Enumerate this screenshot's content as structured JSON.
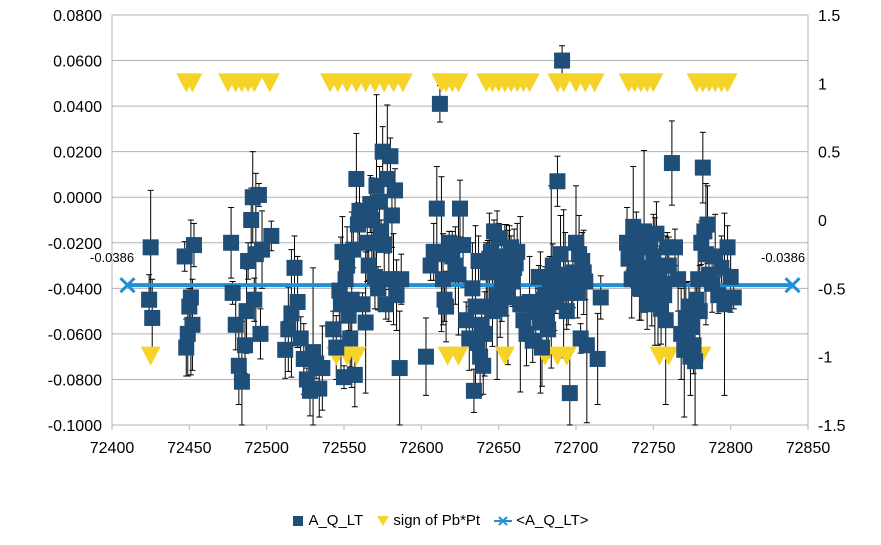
{
  "chart_data": {
    "type": "scatter",
    "xlim": [
      72400,
      72850
    ],
    "ylim_left": [
      -0.1,
      0.08
    ],
    "ylim_right": [
      -1.5,
      1.5
    ],
    "x_ticks": [
      72400,
      72450,
      72500,
      72550,
      72600,
      72650,
      72700,
      72750,
      72800,
      72850
    ],
    "y_left_ticks": [
      "0.0800",
      "0.0600",
      "0.0400",
      "0.0200",
      "0.0000",
      "-0.0200",
      "-0.0400",
      "-0.0600",
      "-0.0800",
      "-0.1000"
    ],
    "y_right_ticks": [
      "1.5",
      "1",
      "0.5",
      "0",
      "-0.5",
      "-1",
      "-1.5"
    ],
    "grid": "horizontal",
    "legend_position": "bottom",
    "colors": {
      "a_q_lt": "#1f4e79",
      "sign": "#f5d328",
      "mean": "#1f8fd6",
      "grid": "#b3b3b3",
      "errorbar": "#000000"
    },
    "annotations": {
      "mean_left": "-0.0386",
      "mean_right": "-0.0386"
    },
    "series": [
      {
        "name": "A_Q_LT",
        "axis": "left",
        "marker": "square",
        "points": [
          [
            72425,
            -0.022
          ],
          [
            72424,
            -0.045
          ],
          [
            72426,
            -0.053
          ],
          [
            72447,
            -0.026
          ],
          [
            72448,
            -0.066
          ],
          [
            72449,
            -0.06
          ],
          [
            72450,
            -0.048
          ],
          [
            72451,
            -0.044
          ],
          [
            72452,
            -0.056
          ],
          [
            72453,
            -0.021
          ],
          [
            72477,
            -0.02
          ],
          [
            72478,
            -0.042
          ],
          [
            72480,
            -0.056
          ],
          [
            72482,
            -0.074
          ],
          [
            72484,
            -0.081
          ],
          [
            72486,
            -0.065
          ],
          [
            72487,
            -0.05
          ],
          [
            72488,
            -0.028
          ],
          [
            72490,
            -0.01
          ],
          [
            72491,
            0.0
          ],
          [
            72492,
            -0.045
          ],
          [
            72493,
            -0.025
          ],
          [
            72495,
            0.001
          ],
          [
            72496,
            -0.06
          ],
          [
            72497,
            -0.023
          ],
          [
            72503,
            -0.017
          ],
          [
            72512,
            -0.067
          ],
          [
            72514,
            -0.058
          ],
          [
            72516,
            -0.051
          ],
          [
            72518,
            -0.031
          ],
          [
            72520,
            -0.046
          ],
          [
            72522,
            -0.062
          ],
          [
            72524,
            -0.071
          ],
          [
            72526,
            -0.08
          ],
          [
            72528,
            -0.085
          ],
          [
            72530,
            -0.068
          ],
          [
            72532,
            -0.073
          ],
          [
            72534,
            -0.084
          ],
          [
            72536,
            -0.075
          ],
          [
            72543,
            -0.058
          ],
          [
            72545,
            -0.066
          ],
          [
            72547,
            -0.041
          ],
          [
            72548,
            -0.047
          ],
          [
            72549,
            -0.024
          ],
          [
            72550,
            -0.079
          ],
          [
            72551,
            -0.036
          ],
          [
            72552,
            -0.03
          ],
          [
            72553,
            -0.052
          ],
          [
            72554,
            -0.062
          ],
          [
            72555,
            -0.045
          ],
          [
            72556,
            -0.023
          ],
          [
            72557,
            -0.078
          ],
          [
            72558,
            0.008
          ],
          [
            72559,
            -0.012
          ],
          [
            72560,
            -0.006
          ],
          [
            72562,
            -0.047
          ],
          [
            72564,
            -0.055
          ],
          [
            72565,
            -0.02
          ],
          [
            72566,
            -0.03
          ],
          [
            72567,
            -0.003
          ],
          [
            72568,
            -0.01
          ],
          [
            72569,
            -0.02
          ],
          [
            72570,
            -0.035
          ],
          [
            72571,
            0.005
          ],
          [
            72572,
            -0.04
          ],
          [
            72573,
            -0.002
          ],
          [
            72574,
            -0.015
          ],
          [
            72575,
            0.02
          ],
          [
            72576,
            -0.021
          ],
          [
            72577,
            -0.047
          ],
          [
            72578,
            0.008
          ],
          [
            72579,
            -0.036
          ],
          [
            72580,
            0.018
          ],
          [
            72581,
            -0.008
          ],
          [
            72582,
            -0.036
          ],
          [
            72583,
            0.003
          ],
          [
            72584,
            -0.043
          ],
          [
            72586,
            -0.075
          ],
          [
            72587,
            -0.036
          ],
          [
            72603,
            -0.07
          ],
          [
            72606,
            -0.03
          ],
          [
            72608,
            -0.024
          ],
          [
            72610,
            -0.005
          ],
          [
            72612,
            0.041
          ],
          [
            72613,
            -0.025
          ],
          [
            72614,
            -0.036
          ],
          [
            72615,
            -0.045
          ],
          [
            72616,
            -0.048
          ],
          [
            72618,
            -0.02
          ],
          [
            72620,
            -0.026
          ],
          [
            72622,
            -0.03
          ],
          [
            72624,
            -0.034
          ],
          [
            72625,
            -0.005
          ],
          [
            72627,
            -0.021
          ],
          [
            72629,
            -0.054
          ],
          [
            72631,
            -0.062
          ],
          [
            72633,
            -0.04
          ],
          [
            72634,
            -0.085
          ],
          [
            72635,
            -0.048
          ],
          [
            72636,
            -0.064
          ],
          [
            72637,
            -0.028
          ],
          [
            72638,
            -0.07
          ],
          [
            72639,
            -0.056
          ],
          [
            72640,
            -0.074
          ],
          [
            72641,
            -0.06
          ],
          [
            72642,
            -0.048
          ],
          [
            72643,
            -0.033
          ],
          [
            72644,
            -0.027
          ],
          [
            72645,
            -0.024
          ],
          [
            72646,
            -0.05
          ],
          [
            72647,
            -0.015
          ],
          [
            72648,
            -0.032
          ],
          [
            72649,
            -0.043
          ],
          [
            72650,
            -0.018
          ],
          [
            72651,
            -0.049
          ],
          [
            72652,
            -0.036
          ],
          [
            72653,
            -0.04
          ],
          [
            72654,
            -0.026
          ],
          [
            72655,
            -0.032
          ],
          [
            72656,
            -0.044
          ],
          [
            72657,
            -0.028
          ],
          [
            72658,
            -0.022
          ],
          [
            72659,
            -0.037
          ],
          [
            72660,
            -0.031
          ],
          [
            72661,
            -0.029
          ],
          [
            72662,
            -0.024
          ],
          [
            72664,
            -0.047
          ],
          [
            72666,
            -0.054
          ],
          [
            72668,
            -0.06
          ],
          [
            72670,
            -0.046
          ],
          [
            72672,
            -0.063
          ],
          [
            72674,
            -0.05
          ],
          [
            72676,
            -0.035
          ],
          [
            72677,
            -0.055
          ],
          [
            72678,
            -0.066
          ],
          [
            72679,
            -0.045
          ],
          [
            72680,
            -0.043
          ],
          [
            72681,
            -0.052
          ],
          [
            72682,
            -0.058
          ],
          [
            72683,
            -0.04
          ],
          [
            72684,
            -0.035
          ],
          [
            72685,
            -0.03
          ],
          [
            72686,
            -0.043
          ],
          [
            72687,
            -0.046
          ],
          [
            72688,
            0.007
          ],
          [
            72690,
            -0.025
          ],
          [
            72691,
            0.06
          ],
          [
            72692,
            -0.038
          ],
          [
            72693,
            -0.034
          ],
          [
            72694,
            -0.05
          ],
          [
            72695,
            -0.042
          ],
          [
            72696,
            -0.086
          ],
          [
            72697,
            -0.04
          ],
          [
            72698,
            -0.033
          ],
          [
            72700,
            -0.02
          ],
          [
            72701,
            -0.042
          ],
          [
            72702,
            -0.025
          ],
          [
            72703,
            -0.062
          ],
          [
            72704,
            -0.028
          ],
          [
            72705,
            -0.033
          ],
          [
            72706,
            -0.037
          ],
          [
            72707,
            -0.065
          ],
          [
            72714,
            -0.071
          ],
          [
            72716,
            -0.044
          ],
          [
            72733,
            -0.02
          ],
          [
            72734,
            -0.027
          ],
          [
            72735,
            -0.023
          ],
          [
            72736,
            -0.036
          ],
          [
            72737,
            -0.013
          ],
          [
            72738,
            -0.03
          ],
          [
            72739,
            -0.025
          ],
          [
            72740,
            -0.018
          ],
          [
            72741,
            -0.04
          ],
          [
            72742,
            -0.034
          ],
          [
            72743,
            -0.022
          ],
          [
            72744,
            -0.015
          ],
          [
            72745,
            -0.038
          ],
          [
            72746,
            -0.047
          ],
          [
            72747,
            -0.031
          ],
          [
            72748,
            -0.02
          ],
          [
            72749,
            -0.044
          ],
          [
            72750,
            -0.026
          ],
          [
            72751,
            -0.037
          ],
          [
            72752,
            -0.016
          ],
          [
            72753,
            -0.045
          ],
          [
            72754,
            -0.031
          ],
          [
            72755,
            -0.049
          ],
          [
            72756,
            -0.038
          ],
          [
            72757,
            -0.043
          ],
          [
            72758,
            -0.054
          ],
          [
            72759,
            -0.022
          ],
          [
            72760,
            -0.03
          ],
          [
            72762,
            0.015
          ],
          [
            72764,
            -0.022
          ],
          [
            72766,
            -0.036
          ],
          [
            72768,
            -0.06
          ],
          [
            72770,
            -0.067
          ],
          [
            72771,
            -0.053
          ],
          [
            72772,
            -0.062
          ],
          [
            72773,
            -0.048
          ],
          [
            72774,
            -0.07
          ],
          [
            72775,
            -0.057
          ],
          [
            72776,
            -0.065
          ],
          [
            72777,
            -0.072
          ],
          [
            72778,
            -0.045
          ],
          [
            72779,
            -0.036
          ],
          [
            72780,
            -0.05
          ],
          [
            72781,
            -0.02
          ],
          [
            72782,
            0.013
          ],
          [
            72783,
            -0.015
          ],
          [
            72784,
            -0.025
          ],
          [
            72785,
            -0.012
          ],
          [
            72786,
            -0.034
          ],
          [
            72788,
            -0.038
          ],
          [
            72790,
            -0.026
          ],
          [
            72792,
            -0.043
          ],
          [
            72794,
            -0.031
          ],
          [
            72796,
            -0.047
          ],
          [
            72798,
            -0.022
          ],
          [
            72800,
            -0.035
          ],
          [
            72802,
            -0.044
          ]
        ]
      },
      {
        "name": "sign of Pb*Pt",
        "axis": "right",
        "marker": "triangle-down",
        "x_positive": [
          72448,
          72452,
          72475,
          72480,
          72484,
          72488,
          72492,
          72502,
          72541,
          72546,
          72552,
          72558,
          72564,
          72570,
          72576,
          72582,
          72588,
          72613,
          72616,
          72620,
          72624,
          72642,
          72646,
          72650,
          72654,
          72658,
          72662,
          72666,
          72670,
          72688,
          72692,
          72700,
          72706,
          72712,
          72734,
          72738,
          72742,
          72746,
          72750,
          72778,
          72782,
          72786,
          72790,
          72794,
          72798
        ],
        "x_negative": [
          72425,
          72545,
          72552,
          72558,
          72617,
          72624,
          72654,
          72680,
          72688,
          72694,
          72754,
          72760,
          72781
        ]
      },
      {
        "name": "<A_Q_LT>",
        "axis": "left",
        "marker": "x-line",
        "x": [
          72410,
          72840
        ],
        "value": -0.0386
      }
    ]
  },
  "legend": {
    "items": [
      {
        "label": "A_Q_LT"
      },
      {
        "label": "sign of Pb*Pt"
      },
      {
        "label": "<A_Q_LT>"
      }
    ]
  }
}
